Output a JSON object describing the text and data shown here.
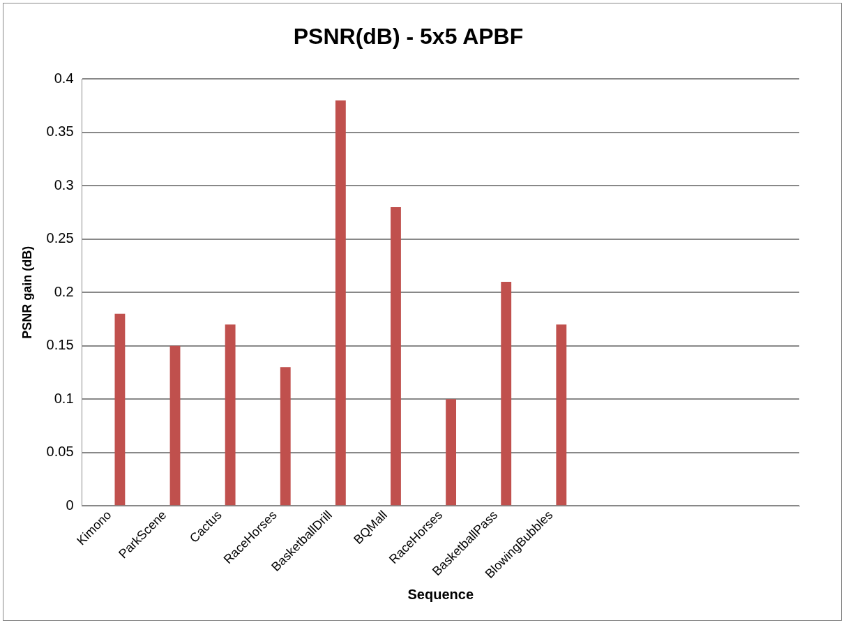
{
  "chart_data": {
    "type": "bar",
    "title": "PSNR(dB) - 5x5 APBF",
    "xlabel": "Sequence",
    "ylabel": "PSNR gain (dB)",
    "categories": [
      "Kimono",
      "ParkScene",
      "Cactus",
      "RaceHorses",
      "BasketballDrill",
      "BQMall",
      "RaceHorses",
      "BasketballPass",
      "BlowingBubbles",
      null,
      null,
      null,
      null
    ],
    "series": [
      {
        "color": "#4f81bd",
        "values": [
          0,
          0,
          0,
          0,
          0,
          0,
          0,
          0,
          0,
          null,
          null,
          null,
          null
        ]
      },
      {
        "color": "#c0504d",
        "values": [
          0.18,
          0.15,
          0.17,
          0.13,
          0.38,
          0.28,
          0.1,
          0.21,
          0.17,
          null,
          null,
          null,
          null
        ]
      }
    ],
    "ylim": [
      0,
      0.4
    ],
    "yticks": [
      0,
      0.05,
      0.1,
      0.15,
      0.2,
      0.25,
      0.3,
      0.35,
      0.4
    ],
    "grid": "y",
    "legend": false
  }
}
